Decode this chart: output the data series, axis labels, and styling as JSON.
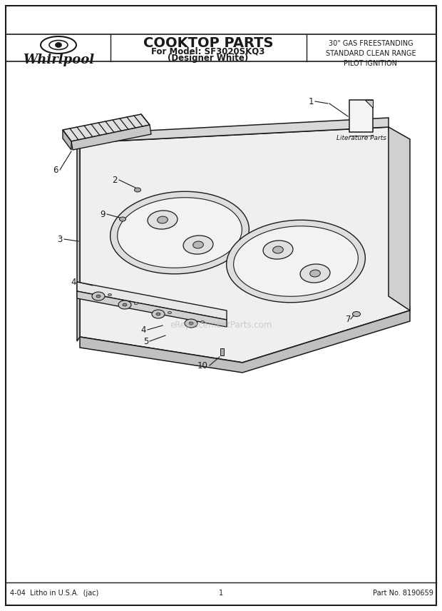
{
  "title": "COOKTOP PARTS",
  "subtitle1": "For Model: SF3020SKQ3",
  "subtitle2": "(Designer White)",
  "right_title": "30\" GAS FREESTANDING\nSTANDARD CLEAN RANGE\nPILOT IGNITION",
  "brand": "Whirlpool",
  "footer_left": "4-04  Litho in U.S.A.  (jac)",
  "footer_center": "1",
  "footer_right": "Part No. 8190659",
  "lit_parts_label": "Literature Parts",
  "watermark": "eReplacementParts.com",
  "bg_color": "#ffffff",
  "line_color": "#1a1a1a"
}
